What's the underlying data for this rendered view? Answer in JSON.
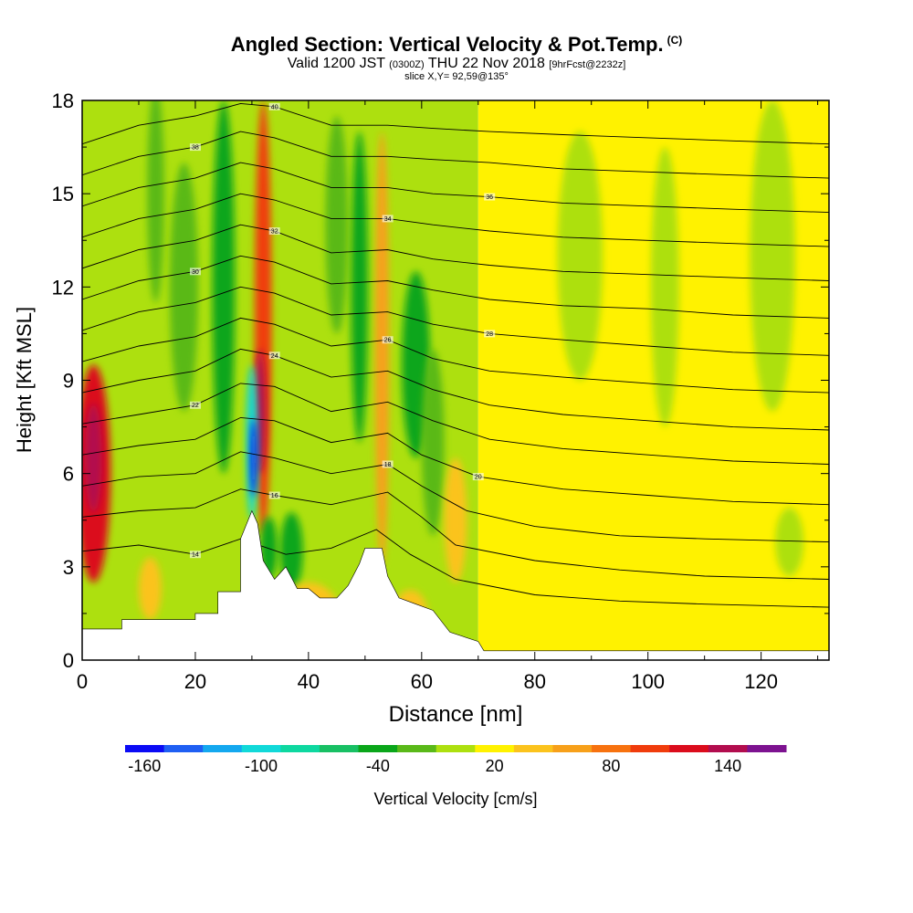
{
  "title": {
    "main": "Angled Section: Vertical Velocity & Pot.Temp.",
    "copyright": "(C)",
    "valid_prefix": "Valid 1200 JST",
    "valid_utc": "(0300Z)",
    "valid_date": "THU 22 Nov 2018",
    "forecast": "[9hrFcst@2232z]",
    "slice": "slice X,Y= 92,59@135°"
  },
  "chart_data": {
    "type": "heatmap",
    "xlabel": "Distance [nm]",
    "ylabel": "Height [Kft MSL]",
    "xlim": [
      0,
      132
    ],
    "ylim": [
      0,
      18
    ],
    "x_ticks": [
      "0",
      "20",
      "40",
      "60",
      "80",
      "100",
      "120"
    ],
    "y_ticks": [
      "0",
      "3",
      "6",
      "9",
      "12",
      "15",
      "18"
    ],
    "grid": false,
    "colorbar": {
      "label": "Vertical Velocity [cm/s]",
      "tick_labels": [
        "-160",
        "-100",
        "-40",
        "20",
        "80",
        "140"
      ],
      "colors": [
        "#0b0bf5",
        "#1f5ff3",
        "#14a8ef",
        "#11d9d9",
        "#0ed8a0",
        "#18c064",
        "#0aa61a",
        "#5ab919",
        "#ade00f",
        "#fff200",
        "#fbc31d",
        "#f7a01a",
        "#f7720f",
        "#f03c0c",
        "#db0c1c",
        "#b20d4e",
        "#7d1290"
      ]
    },
    "background_field": [
      {
        "x": [
          0,
          70
        ],
        "value": 0
      },
      {
        "x": [
          70,
          132
        ],
        "value": 20
      }
    ],
    "features": [
      {
        "x": 2,
        "y": 6,
        "width": 6,
        "height": 7,
        "value": 120
      },
      {
        "x": 2,
        "y": 6.5,
        "width": 3,
        "height": 3.5,
        "value": 140
      },
      {
        "x": 32,
        "y": 11,
        "width": 3,
        "height": 14,
        "value": 90
      },
      {
        "x": 31.5,
        "y": 8,
        "width": 2,
        "height": 4,
        "value": 130
      },
      {
        "x": 30,
        "y": 7,
        "width": 2,
        "height": 5,
        "value": -110
      },
      {
        "x": 30.3,
        "y": 6.5,
        "width": 1,
        "height": 2.5,
        "value": -160
      },
      {
        "x": 25,
        "y": 12,
        "width": 4,
        "height": 12,
        "value": -40
      },
      {
        "x": 13,
        "y": 15,
        "width": 3,
        "height": 7,
        "value": -30
      },
      {
        "x": 53,
        "y": 10,
        "width": 2.5,
        "height": 14,
        "value": 60
      },
      {
        "x": 49,
        "y": 12,
        "width": 3,
        "height": 10,
        "value": -40
      },
      {
        "x": 45,
        "y": 14,
        "width": 4,
        "height": 7,
        "value": -30
      },
      {
        "x": 59,
        "y": 9.5,
        "width": 5,
        "height": 6,
        "value": -40
      },
      {
        "x": 37,
        "y": 3.5,
        "width": 4,
        "height": 2.5,
        "value": -50
      },
      {
        "x": 33,
        "y": 3.6,
        "width": 3,
        "height": 2,
        "value": -40
      },
      {
        "x": 18,
        "y": 12,
        "width": 5,
        "height": 8,
        "value": -20
      },
      {
        "x": 62,
        "y": 7,
        "width": 4,
        "height": 6,
        "value": -20
      },
      {
        "x": 122,
        "y": 13,
        "width": 8,
        "height": 10,
        "value": 0
      },
      {
        "x": 88,
        "y": 13,
        "width": 8,
        "height": 8,
        "value": 0
      },
      {
        "x": 103,
        "y": 12,
        "width": 5,
        "height": 9,
        "value": 0
      },
      {
        "x": 12,
        "y": 2.3,
        "width": 4,
        "height": 2,
        "value": 30
      },
      {
        "x": 40,
        "y": 1.2,
        "width": 12,
        "height": 2.6,
        "value": 30
      },
      {
        "x": 58,
        "y": 1.5,
        "width": 6,
        "height": 1.5,
        "value": 30
      },
      {
        "x": 125,
        "y": 3.8,
        "width": 5,
        "height": 2.2,
        "value": 0
      },
      {
        "x": 66,
        "y": 4.5,
        "width": 4,
        "height": 4,
        "value": 30
      }
    ],
    "terrain": [
      [
        0,
        1
      ],
      [
        7,
        1
      ],
      [
        7,
        1.3
      ],
      [
        20,
        1.3
      ],
      [
        20,
        1.5
      ],
      [
        24,
        1.5
      ],
      [
        24,
        2.2
      ],
      [
        28,
        2.2
      ],
      [
        28,
        3.9
      ],
      [
        30,
        4.8
      ],
      [
        31,
        4.4
      ],
      [
        32,
        3.2
      ],
      [
        34,
        2.6
      ],
      [
        36,
        3
      ],
      [
        38,
        2.3
      ],
      [
        40,
        2.3
      ],
      [
        42,
        2
      ],
      [
        45,
        2
      ],
      [
        47,
        2.4
      ],
      [
        49,
        3.1
      ],
      [
        50,
        3.6
      ],
      [
        53,
        3.6
      ],
      [
        54,
        2.7
      ],
      [
        56,
        2
      ],
      [
        59,
        1.8
      ],
      [
        62,
        1.6
      ],
      [
        65,
        0.9
      ],
      [
        70,
        0.6
      ],
      [
        71,
        0.3
      ],
      [
        132,
        0.3
      ],
      [
        132,
        0
      ],
      [
        0,
        0
      ]
    ],
    "theta_contours": [
      {
        "level": 14,
        "points": [
          [
            0,
            3.5
          ],
          [
            10,
            3.7
          ],
          [
            20,
            3.4
          ],
          [
            28,
            3.9
          ],
          [
            36,
            3.4
          ],
          [
            44,
            3.6
          ],
          [
            52,
            4.2
          ],
          [
            58,
            3.4
          ],
          [
            66,
            2.6
          ],
          [
            80,
            2.1
          ],
          [
            95,
            1.9
          ],
          [
            110,
            1.8
          ],
          [
            132,
            1.7
          ]
        ]
      },
      {
        "level": 16,
        "points": [
          [
            0,
            4.6
          ],
          [
            10,
            4.8
          ],
          [
            20,
            4.9
          ],
          [
            28,
            5.5
          ],
          [
            34,
            5.3
          ],
          [
            44,
            5
          ],
          [
            54,
            5.4
          ],
          [
            60,
            4.6
          ],
          [
            66,
            3.7
          ],
          [
            80,
            3.2
          ],
          [
            95,
            2.9
          ],
          [
            110,
            2.7
          ],
          [
            132,
            2.6
          ]
        ]
      },
      {
        "level": 18,
        "points": [
          [
            0,
            5.6
          ],
          [
            10,
            5.9
          ],
          [
            20,
            6
          ],
          [
            28,
            6.7
          ],
          [
            34,
            6.5
          ],
          [
            44,
            6
          ],
          [
            54,
            6.3
          ],
          [
            60,
            5.6
          ],
          [
            68,
            4.8
          ],
          [
            80,
            4.3
          ],
          [
            95,
            4
          ],
          [
            110,
            3.9
          ],
          [
            132,
            3.8
          ]
        ]
      },
      {
        "level": 20,
        "points": [
          [
            0,
            6.6
          ],
          [
            10,
            6.9
          ],
          [
            20,
            7.1
          ],
          [
            28,
            7.8
          ],
          [
            34,
            7.7
          ],
          [
            44,
            7
          ],
          [
            54,
            7.3
          ],
          [
            60,
            6.6
          ],
          [
            70,
            5.9
          ],
          [
            85,
            5.5
          ],
          [
            100,
            5.3
          ],
          [
            115,
            5.1
          ],
          [
            132,
            5
          ]
        ]
      },
      {
        "level": 22,
        "points": [
          [
            0,
            7.6
          ],
          [
            10,
            7.9
          ],
          [
            20,
            8.2
          ],
          [
            28,
            8.9
          ],
          [
            34,
            8.8
          ],
          [
            44,
            8
          ],
          [
            54,
            8.3
          ],
          [
            62,
            7.7
          ],
          [
            72,
            7.1
          ],
          [
            85,
            6.8
          ],
          [
            100,
            6.6
          ],
          [
            115,
            6.4
          ],
          [
            132,
            6.3
          ]
        ]
      },
      {
        "level": 24,
        "points": [
          [
            0,
            8.6
          ],
          [
            10,
            9
          ],
          [
            20,
            9.3
          ],
          [
            28,
            10
          ],
          [
            34,
            9.8
          ],
          [
            44,
            9.1
          ],
          [
            54,
            9.3
          ],
          [
            62,
            8.7
          ],
          [
            72,
            8.2
          ],
          [
            85,
            7.9
          ],
          [
            100,
            7.7
          ],
          [
            115,
            7.5
          ],
          [
            132,
            7.4
          ]
        ]
      },
      {
        "level": 26,
        "points": [
          [
            0,
            9.6
          ],
          [
            10,
            10.1
          ],
          [
            20,
            10.4
          ],
          [
            28,
            11
          ],
          [
            34,
            10.8
          ],
          [
            44,
            10.1
          ],
          [
            54,
            10.3
          ],
          [
            62,
            9.7
          ],
          [
            72,
            9.3
          ],
          [
            85,
            9.1
          ],
          [
            100,
            8.9
          ],
          [
            115,
            8.7
          ],
          [
            132,
            8.6
          ]
        ]
      },
      {
        "level": 28,
        "points": [
          [
            0,
            10.6
          ],
          [
            10,
            11.2
          ],
          [
            20,
            11.5
          ],
          [
            28,
            12
          ],
          [
            34,
            11.8
          ],
          [
            44,
            11.1
          ],
          [
            54,
            11.2
          ],
          [
            62,
            10.8
          ],
          [
            72,
            10.5
          ],
          [
            85,
            10.3
          ],
          [
            100,
            10.1
          ],
          [
            115,
            9.9
          ],
          [
            132,
            9.8
          ]
        ]
      },
      {
        "level": 30,
        "points": [
          [
            0,
            11.6
          ],
          [
            10,
            12.2
          ],
          [
            20,
            12.5
          ],
          [
            28,
            13
          ],
          [
            34,
            12.8
          ],
          [
            44,
            12.1
          ],
          [
            54,
            12.2
          ],
          [
            62,
            11.9
          ],
          [
            72,
            11.6
          ],
          [
            85,
            11.4
          ],
          [
            100,
            11.3
          ],
          [
            115,
            11.1
          ],
          [
            132,
            11
          ]
        ]
      },
      {
        "level": 32,
        "points": [
          [
            0,
            12.6
          ],
          [
            10,
            13.2
          ],
          [
            20,
            13.5
          ],
          [
            28,
            14
          ],
          [
            34,
            13.8
          ],
          [
            44,
            13.1
          ],
          [
            54,
            13.2
          ],
          [
            62,
            12.9
          ],
          [
            72,
            12.7
          ],
          [
            85,
            12.5
          ],
          [
            100,
            12.4
          ],
          [
            115,
            12.3
          ],
          [
            132,
            12.2
          ]
        ]
      },
      {
        "level": 34,
        "points": [
          [
            0,
            13.6
          ],
          [
            10,
            14.2
          ],
          [
            20,
            14.5
          ],
          [
            28,
            15
          ],
          [
            34,
            14.8
          ],
          [
            44,
            14.2
          ],
          [
            54,
            14.2
          ],
          [
            62,
            14
          ],
          [
            72,
            13.8
          ],
          [
            85,
            13.6
          ],
          [
            100,
            13.5
          ],
          [
            115,
            13.4
          ],
          [
            132,
            13.3
          ]
        ]
      },
      {
        "level": 36,
        "points": [
          [
            0,
            14.6
          ],
          [
            10,
            15.2
          ],
          [
            20,
            15.5
          ],
          [
            28,
            16
          ],
          [
            34,
            15.8
          ],
          [
            44,
            15.2
          ],
          [
            54,
            15.2
          ],
          [
            62,
            15
          ],
          [
            72,
            14.9
          ],
          [
            85,
            14.7
          ],
          [
            100,
            14.6
          ],
          [
            115,
            14.5
          ],
          [
            132,
            14.4
          ]
        ]
      },
      {
        "level": 38,
        "points": [
          [
            0,
            15.6
          ],
          [
            10,
            16.2
          ],
          [
            20,
            16.5
          ],
          [
            28,
            17
          ],
          [
            34,
            16.8
          ],
          [
            44,
            16.2
          ],
          [
            54,
            16.2
          ],
          [
            62,
            16.1
          ],
          [
            72,
            16
          ],
          [
            85,
            15.8
          ],
          [
            100,
            15.7
          ],
          [
            115,
            15.6
          ],
          [
            132,
            15.5
          ]
        ]
      },
      {
        "level": 40,
        "points": [
          [
            0,
            16.6
          ],
          [
            10,
            17.2
          ],
          [
            20,
            17.5
          ],
          [
            28,
            17.9
          ],
          [
            34,
            17.8
          ],
          [
            44,
            17.2
          ],
          [
            54,
            17.2
          ],
          [
            62,
            17.1
          ],
          [
            72,
            17
          ],
          [
            85,
            16.9
          ],
          [
            100,
            16.8
          ],
          [
            115,
            16.7
          ],
          [
            132,
            16.6
          ]
        ]
      }
    ]
  }
}
